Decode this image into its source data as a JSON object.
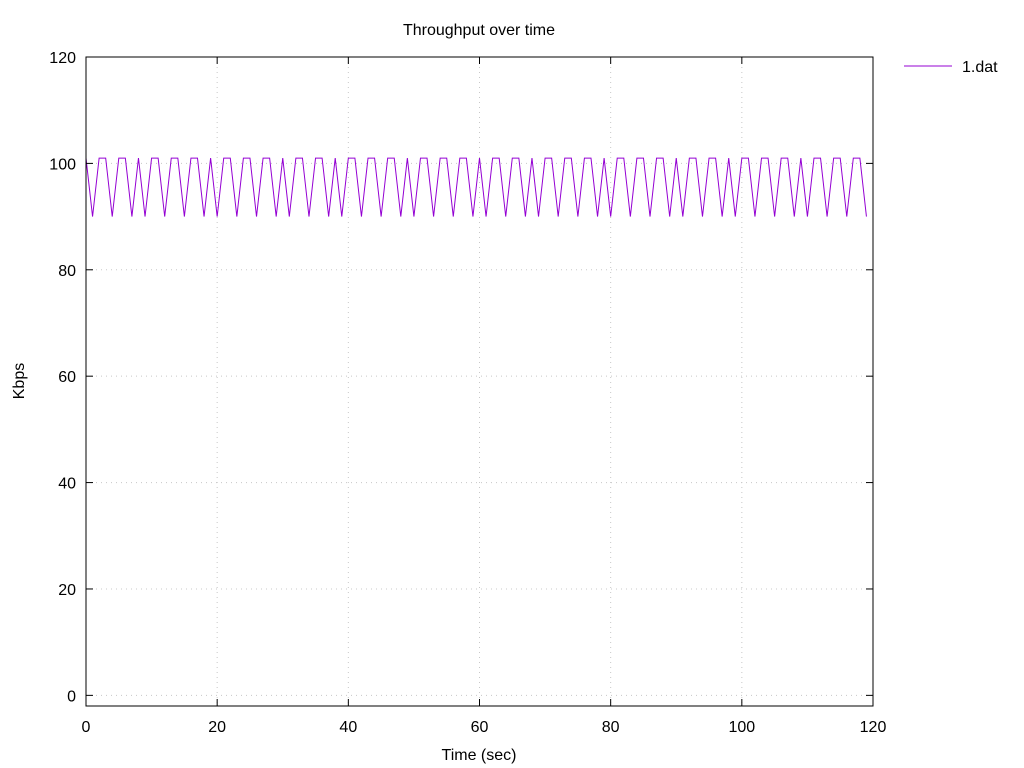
{
  "chart_data": {
    "type": "line",
    "title": "Throughput over time",
    "xlabel": "Time (sec)",
    "ylabel": "Kbps",
    "xlim": [
      0,
      120
    ],
    "ylim": [
      -2,
      120
    ],
    "xticks": [
      0,
      20,
      40,
      60,
      80,
      100,
      120
    ],
    "yticks": [
      0,
      20,
      40,
      60,
      80,
      100,
      120
    ],
    "grid": true,
    "grid_style": "dotted",
    "legend_position": "top-right outside plot",
    "series": [
      {
        "name": "1.dat",
        "color": "#9400d3",
        "x": [
          0,
          1,
          2,
          3,
          4,
          5,
          6,
          7,
          8,
          9,
          10,
          11,
          12,
          13,
          14,
          15,
          16,
          17,
          18,
          19,
          20,
          21,
          22,
          23,
          24,
          25,
          26,
          27,
          28,
          29,
          30,
          31,
          32,
          33,
          34,
          35,
          36,
          37,
          38,
          39,
          40,
          41,
          42,
          43,
          44,
          45,
          46,
          47,
          48,
          49,
          50,
          51,
          52,
          53,
          54,
          55,
          56,
          57,
          58,
          59,
          60,
          61,
          62,
          63,
          64,
          65,
          66,
          67,
          68,
          69,
          70,
          71,
          72,
          73,
          74,
          75,
          76,
          77,
          78,
          79,
          80,
          81,
          82,
          83,
          84,
          85,
          86,
          87,
          88,
          89,
          90,
          91,
          92,
          93,
          94,
          95,
          96,
          97,
          98,
          99,
          100,
          101,
          102,
          103,
          104,
          105,
          106,
          107,
          108,
          109,
          110,
          111,
          112,
          113,
          114,
          115,
          116,
          117,
          118,
          119
        ],
        "y": [
          101,
          90,
          101,
          101,
          90,
          101,
          101,
          90,
          101,
          90,
          101,
          101,
          90,
          101,
          101,
          90,
          101,
          101,
          90,
          101,
          90,
          101,
          101,
          90,
          101,
          101,
          90,
          101,
          101,
          90,
          101,
          90,
          101,
          101,
          90,
          101,
          101,
          90,
          101,
          90,
          101,
          101,
          90,
          101,
          101,
          90,
          101,
          101,
          90,
          101,
          90,
          101,
          101,
          90,
          101,
          101,
          90,
          101,
          101,
          90,
          101,
          90,
          101,
          101,
          90,
          101,
          101,
          90,
          101,
          90,
          101,
          101,
          90,
          101,
          101,
          90,
          101,
          101,
          90,
          101,
          90,
          101,
          101,
          90,
          101,
          101,
          90,
          101,
          101,
          90,
          101,
          90,
          101,
          101,
          90,
          101,
          101,
          90,
          101,
          90,
          101,
          101,
          90,
          101,
          101,
          90,
          101,
          101,
          90,
          101,
          90,
          101,
          101,
          90,
          101,
          101,
          90,
          101,
          101,
          90
        ]
      }
    ]
  }
}
